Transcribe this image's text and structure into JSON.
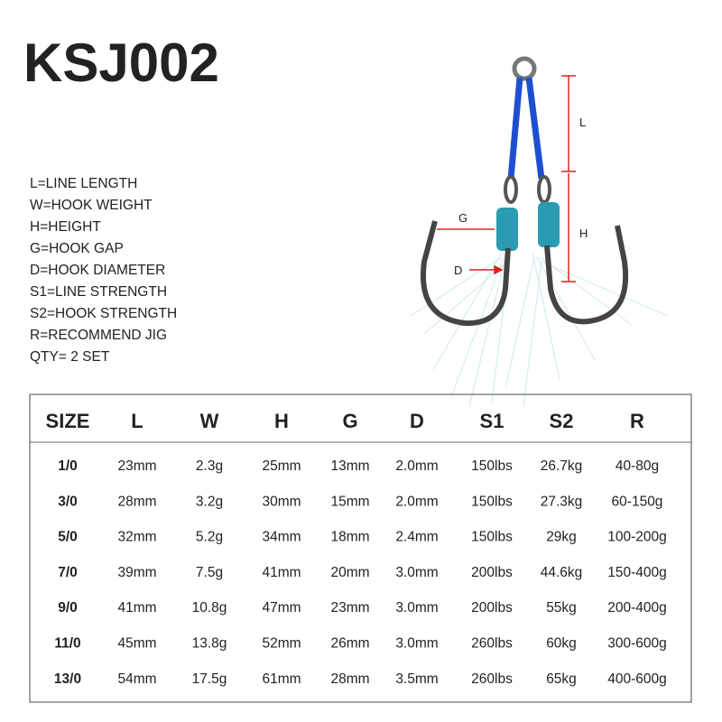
{
  "header": {
    "title": "KSJ002"
  },
  "legend": [
    "L=LINE LENGTH",
    "W=HOOK WEIGHT",
    "H=HEIGHT",
    "G=HOOK GAP",
    "D=HOOK DIAMETER",
    "S1=LINE STRENGTH",
    "S2=HOOK STRENGTH",
    "R=RECOMMEND JIG",
    "QTY= 2 SET"
  ],
  "diagram": {
    "labels": [
      "L",
      "G",
      "H",
      "D"
    ]
  },
  "table": {
    "columns": [
      "SIZE",
      "L",
      "W",
      "H",
      "G",
      "D",
      "S1",
      "S2",
      "R"
    ],
    "rows": [
      [
        "1/0",
        "23mm",
        "2.3g",
        "25mm",
        "13mm",
        "2.0mm",
        "150lbs",
        "26.7kg",
        "40-80g"
      ],
      [
        "3/0",
        "28mm",
        "3.2g",
        "30mm",
        "15mm",
        "2.0mm",
        "150lbs",
        "27.3kg",
        "60-150g"
      ],
      [
        "5/0",
        "32mm",
        "5.2g",
        "34mm",
        "18mm",
        "2.4mm",
        "150lbs",
        "29kg",
        "100-200g"
      ],
      [
        "7/0",
        "39mm",
        "7.5g",
        "41mm",
        "20mm",
        "3.0mm",
        "200lbs",
        "44.6kg",
        "150-400g"
      ],
      [
        "9/0",
        "41mm",
        "10.8g",
        "47mm",
        "23mm",
        "3.0mm",
        "200lbs",
        "55kg",
        "200-400g"
      ],
      [
        "11/0",
        "45mm",
        "13.8g",
        "52mm",
        "26mm",
        "3.0mm",
        "260lbs",
        "60kg",
        "300-600g"
      ],
      [
        "13/0",
        "54mm",
        "17.5g",
        "61mm",
        "28mm",
        "3.5mm",
        "260lbs",
        "65kg",
        "400-600g"
      ]
    ]
  }
}
